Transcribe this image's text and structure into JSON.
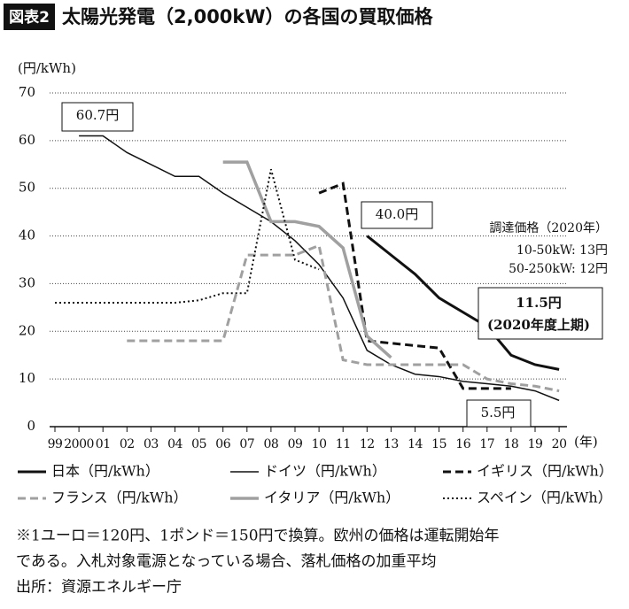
{
  "chart_data": {
    "type": "line",
    "badge": "図表2",
    "title": "太陽光発電（2,000kW）の各国の買取価格",
    "y_label": "(円/kWh)",
    "x_unit": "(年)",
    "categories": [
      "99",
      "2000",
      "01",
      "02",
      "03",
      "04",
      "05",
      "06",
      "07",
      "08",
      "09",
      "10",
      "11",
      "12",
      "13",
      "14",
      "15",
      "16",
      "17",
      "18",
      "19",
      "20"
    ],
    "ylim": [
      0,
      70
    ],
    "yticks": [
      0,
      10,
      20,
      30,
      40,
      50,
      60,
      70
    ],
    "grid": true,
    "series": [
      {
        "name": "日本（円/kWh）",
        "color": "#111111",
        "dash": "solid",
        "width": 3,
        "values": [
          null,
          null,
          null,
          null,
          null,
          null,
          null,
          null,
          null,
          null,
          null,
          null,
          null,
          40,
          36,
          32,
          27,
          24,
          21,
          15,
          13,
          12
        ]
      },
      {
        "name": "ドイツ（円/kWh）",
        "color": "#111111",
        "dash": "solid",
        "width": 1.5,
        "values": [
          null,
          61,
          61,
          57.5,
          55,
          52.5,
          52.5,
          49,
          46,
          43,
          39,
          34,
          27,
          16,
          13,
          11,
          10.5,
          9.5,
          9,
          8.5,
          7.5,
          5.5
        ]
      },
      {
        "name": "イギリス（円/kWh）",
        "color": "#111111",
        "dash": "dashed",
        "width": 3,
        "values": [
          null,
          null,
          null,
          null,
          null,
          null,
          null,
          null,
          null,
          null,
          null,
          49,
          51,
          18,
          17.5,
          17,
          16.5,
          8,
          8,
          8,
          null,
          null
        ]
      },
      {
        "name": "フランス（円/kWh）",
        "color": "#a0a0a0",
        "dash": "dashed",
        "width": 3,
        "values": [
          null,
          null,
          null,
          18,
          18,
          18,
          18,
          18,
          36,
          36,
          36,
          38,
          14,
          13,
          13,
          13,
          13,
          13,
          10,
          9,
          8.5,
          7.5
        ]
      },
      {
        "name": "イタリア（円/kWh）",
        "color": "#a0a0a0",
        "dash": "solid",
        "width": 3.5,
        "values": [
          null,
          null,
          null,
          null,
          null,
          null,
          null,
          55.5,
          55.5,
          43,
          43,
          42,
          37.5,
          19,
          14.5,
          null,
          null,
          null,
          null,
          null,
          null,
          null
        ]
      },
      {
        "name": "スペイン（円/kWh）",
        "color": "#111111",
        "dash": "dotted",
        "width": 2,
        "values": [
          26,
          26,
          26,
          26,
          26,
          26,
          26.5,
          28,
          28,
          54,
          35,
          33,
          null,
          null,
          null,
          null,
          null,
          null,
          null,
          null,
          null,
          null
        ]
      }
    ],
    "annotations": [
      "60.7円",
      "40.0円",
      "調達価格（2020年）",
      "10-50kW: 13円",
      "50-250kW: 12円",
      "11.5円",
      "(2020年度上期)",
      "5.5円"
    ],
    "notes": [
      "※1ユーロ＝120円、1ポンド＝150円で換算。欧州の価格は運転開始年",
      "である。入札対象電源となっている場合、落札価格の加重平均",
      "出所：資源エネルギー庁"
    ]
  }
}
